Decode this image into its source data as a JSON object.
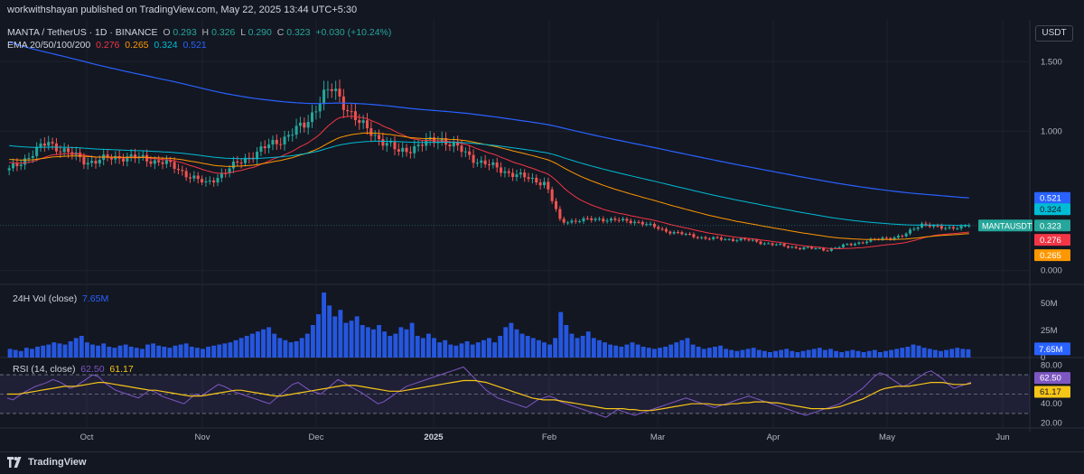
{
  "header": {
    "published": "workwithshayan published on TradingView.com, May 22, 2025 13:44 UTC+5:30"
  },
  "legend": {
    "symbol": "MANTA / TetherUS · 1D · BINANCE",
    "o_label": "O",
    "o_value": "0.293",
    "h_label": "H",
    "h_value": "0.326",
    "l_label": "L",
    "l_value": "0.290",
    "c_label": "C",
    "c_value": "0.323",
    "change": "+0.030 (+10.24%)",
    "ema_label": "EMA 20/50/100/200",
    "ema20": "0.276",
    "ema50": "0.265",
    "ema100": "0.324",
    "ema200": "0.521",
    "vol_label": "24H Vol (close)",
    "vol_value": "7.65M",
    "rsi_label": "RSI (14, close)",
    "rsi_value": "62.50",
    "rsi_ma": "61.17"
  },
  "currency": "USDT",
  "footer": {
    "brand": "TradingView"
  },
  "colors": {
    "background": "#131722",
    "up": "#26a69a",
    "down": "#ef5350",
    "ema20": "#f23645",
    "ema50": "#ff9800",
    "ema100": "#00bcd4",
    "ema200": "#2962ff",
    "volume": "#2962ff",
    "rsi": "#7e57c2",
    "rsi_ma": "#f5c518"
  },
  "chart_data": [
    {
      "type": "candlestick",
      "title": "MANTA / TetherUS · 1D · BINANCE",
      "x_ticks": [
        "Oct",
        "Nov",
        "Dec",
        "2025",
        "Feb",
        "Mar",
        "Apr",
        "May",
        "Jun"
      ],
      "y_ticks": [
        "1.500",
        "1.000",
        "0.000"
      ],
      "y_range": [
        -0.1,
        1.8
      ],
      "series": [
        {
          "name": "MANTA / TetherUS",
          "points": [
            [
              "2024-09-15",
              0.72
            ],
            [
              "2024-09-25",
              0.92
            ],
            [
              "2024-10-05",
              0.78
            ],
            [
              "2024-10-15",
              0.82
            ],
            [
              "2024-10-25",
              0.78
            ],
            [
              "2024-11-05",
              0.62
            ],
            [
              "2024-11-15",
              0.8
            ],
            [
              "2024-11-25",
              0.95
            ],
            [
              "2024-12-01",
              1.05
            ],
            [
              "2024-12-05",
              1.25
            ],
            [
              "2024-12-08",
              1.3
            ],
            [
              "2024-12-15",
              1.05
            ],
            [
              "2024-12-25",
              0.85
            ],
            [
              "2025-01-05",
              0.95
            ],
            [
              "2025-01-15",
              0.78
            ],
            [
              "2025-01-25",
              0.68
            ],
            [
              "2025-02-01",
              0.63
            ],
            [
              "2025-02-05",
              0.35
            ],
            [
              "2025-02-15",
              0.37
            ],
            [
              "2025-02-25",
              0.35
            ],
            [
              "2025-03-05",
              0.28
            ],
            [
              "2025-03-15",
              0.23
            ],
            [
              "2025-03-25",
              0.22
            ],
            [
              "2025-04-05",
              0.17
            ],
            [
              "2025-04-15",
              0.15
            ],
            [
              "2025-04-25",
              0.21
            ],
            [
              "2025-05-05",
              0.25
            ],
            [
              "2025-05-10",
              0.34
            ],
            [
              "2025-05-15",
              0.3
            ],
            [
              "2025-05-22",
              0.323
            ]
          ]
        },
        {
          "name": "EMA 20",
          "last": 0.276
        },
        {
          "name": "EMA 50",
          "last": 0.265
        },
        {
          "name": "EMA 100",
          "last": 0.324
        },
        {
          "name": "EMA 200",
          "last": 0.521
        }
      ],
      "price_labels": [
        {
          "text": "0.521",
          "color": "#2962ff"
        },
        {
          "text": "0.324",
          "color": "#00bcd4"
        },
        {
          "text": "MANTAUSDT",
          "color": "#26a69a"
        },
        {
          "text": "0.323",
          "color": "#26a69a"
        },
        {
          "text": "0.276",
          "color": "#f23645"
        },
        {
          "text": "0.265",
          "color": "#ff9800"
        }
      ]
    },
    {
      "type": "bar",
      "title": "24H Vol (close)",
      "y_ticks": [
        "50M",
        "25M",
        "0"
      ],
      "y_range": [
        0,
        65
      ],
      "last_label": "7.65M",
      "values": [
        8,
        7,
        6,
        9,
        8,
        10,
        11,
        12,
        14,
        13,
        12,
        15,
        18,
        20,
        14,
        12,
        11,
        13,
        10,
        9,
        11,
        12,
        10,
        9,
        8,
        12,
        13,
        11,
        10,
        9,
        11,
        12,
        13,
        10,
        9,
        8,
        10,
        11,
        12,
        13,
        14,
        16,
        18,
        20,
        22,
        24,
        26,
        28,
        22,
        18,
        16,
        14,
        15,
        18,
        22,
        30,
        40,
        60,
        48,
        38,
        44,
        32,
        34,
        38,
        30,
        28,
        26,
        30,
        24,
        20,
        22,
        28,
        26,
        32,
        20,
        18,
        22,
        18,
        14,
        16,
        12,
        11,
        13,
        15,
        12,
        14,
        16,
        18,
        14,
        20,
        28,
        32,
        26,
        22,
        20,
        18,
        16,
        14,
        12,
        18,
        42,
        30,
        22,
        18,
        20,
        24,
        18,
        16,
        14,
        12,
        11,
        10,
        12,
        14,
        12,
        10,
        9,
        8,
        9,
        10,
        12,
        14,
        16,
        18,
        12,
        10,
        8,
        9,
        10,
        11,
        8,
        7,
        6,
        7,
        8,
        9,
        7,
        6,
        5,
        6,
        7,
        8,
        6,
        5,
        6,
        7,
        8,
        9,
        7,
        8,
        6,
        5,
        6,
        7,
        6,
        5,
        6,
        7,
        5,
        6,
        7,
        8,
        9,
        10,
        12,
        11,
        9,
        8,
        7,
        6,
        7,
        8,
        9,
        8,
        7.65
      ]
    },
    {
      "type": "line",
      "title": "RSI (14, close)",
      "y_ticks": [
        "80.00",
        "40.00",
        "20.00"
      ],
      "y_range": [
        15,
        85
      ],
      "bands": [
        70,
        50,
        30
      ],
      "series": [
        {
          "name": "RSI",
          "last": 62.5
        },
        {
          "name": "RSI MA",
          "last": 61.17
        }
      ],
      "rsi_values": [
        46,
        44,
        48,
        52,
        55,
        58,
        60,
        62,
        65,
        63,
        60,
        56,
        58,
        62,
        66,
        70,
        68,
        62,
        58,
        54,
        52,
        50,
        48,
        46,
        50,
        54,
        52,
        48,
        46,
        44,
        42,
        40,
        45,
        50,
        48,
        52,
        56,
        60,
        58,
        55,
        52,
        50,
        48,
        46,
        44,
        42,
        40,
        45,
        50,
        55,
        60,
        62,
        58,
        54,
        52,
        50,
        55,
        60,
        65,
        62,
        58,
        55,
        52,
        48,
        44,
        40,
        42,
        46,
        50,
        54,
        58,
        60,
        62,
        64,
        66,
        68,
        70,
        72,
        74,
        76,
        78,
        72,
        66,
        60,
        54,
        50,
        46,
        44,
        42,
        40,
        38,
        36,
        40,
        44,
        46,
        48,
        46,
        42,
        40,
        38,
        36,
        34,
        32,
        30,
        28,
        26,
        30,
        34,
        32,
        30,
        28,
        30,
        32,
        34,
        36,
        38,
        40,
        42,
        44,
        46,
        44,
        42,
        40,
        38,
        36,
        38,
        40,
        42,
        44,
        46,
        48,
        46,
        44,
        42,
        40,
        38,
        36,
        34,
        32,
        30,
        28,
        30,
        32,
        34,
        36,
        38,
        40,
        44,
        48,
        52,
        56,
        62,
        68,
        72,
        70,
        66,
        62,
        58,
        60,
        64,
        68,
        72,
        74,
        70,
        66,
        60,
        56,
        58,
        60,
        62.5
      ],
      "ma_values": [
        50,
        50,
        50,
        51,
        52,
        53,
        54,
        55,
        56,
        57,
        58,
        58,
        58,
        59,
        60,
        61,
        62,
        62,
        61,
        60,
        59,
        58,
        57,
        56,
        55,
        54,
        54,
        53,
        52,
        51,
        50,
        49,
        48,
        48,
        48,
        49,
        50,
        51,
        52,
        53,
        54,
        54,
        53,
        52,
        51,
        50,
        49,
        48,
        48,
        49,
        50,
        51,
        52,
        53,
        54,
        55,
        56,
        57,
        58,
        59,
        59,
        59,
        58,
        57,
        56,
        55,
        54,
        53,
        53,
        53,
        54,
        55,
        56,
        57,
        58,
        59,
        60,
        61,
        62,
        63,
        64,
        64,
        64,
        63,
        62,
        60,
        58,
        56,
        54,
        52,
        50,
        48,
        46,
        45,
        44,
        44,
        44,
        43,
        42,
        41,
        40,
        39,
        38,
        37,
        36,
        35,
        35,
        35,
        35,
        34,
        34,
        33,
        33,
        33,
        34,
        35,
        36,
        37,
        38,
        39,
        40,
        40,
        40,
        40,
        39,
        39,
        39,
        40,
        40,
        41,
        41,
        42,
        42,
        42,
        41,
        41,
        40,
        39,
        38,
        37,
        36,
        35,
        35,
        35,
        35,
        36,
        37,
        39,
        41,
        43,
        45,
        48,
        51,
        54,
        56,
        57,
        58,
        58,
        58,
        59,
        60,
        61,
        62,
        62,
        62,
        61,
        60,
        60,
        60,
        61.17
      ]
    }
  ]
}
